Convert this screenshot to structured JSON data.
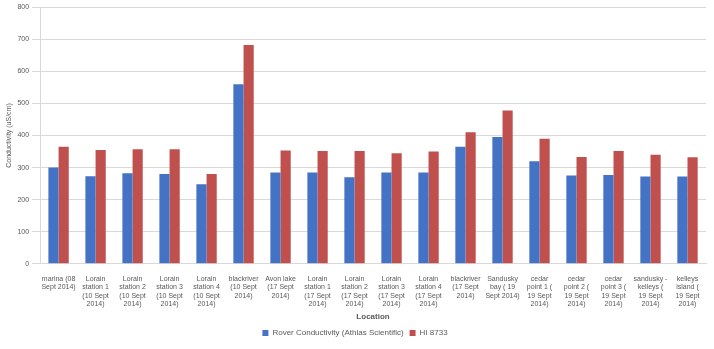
{
  "chart_data": {
    "type": "bar",
    "x_label": "Location",
    "y_label": "Conductivity (uS/cm)",
    "categories": [
      "marina (08 Sept 2014)",
      "Lorain station 1 (10 Sept 2014)",
      "Lorain station 2 (10 Sept 2014)",
      "Lorain station 3 (10 Sept 2014)",
      "Lorain station 4 (10 Sept 2014)",
      "blackriver (10 Sept 2014)",
      "Avon lake (17 Sept 2014)",
      "Lorain station 1 (17 Sept 2014)",
      "Lorain station 2 (17 Sept 2014)",
      "Lorain station 3 (17 Sept 2014)",
      "Lorain station 4 (17 Sept 2014)",
      "blackriver (17 Sept 2014)",
      "Sandusky bay ( 19 Sept 2014)",
      "cedar point 1 ( 19 Sept 2014)",
      "cedar point 2 ( 19 Sept 2014)",
      "cedar point 3 ( 19 Sept 2014)",
      "sandusky - kelleys ( 19 Sept 2014)",
      "kelleys island ( 19 Sept 2014)"
    ],
    "series": [
      {
        "name": "Rover Conductivity (Athlas Scientific)",
        "color": "#4472c4",
        "values": [
          300,
          273,
          282,
          280,
          248,
          560,
          285,
          285,
          270,
          285,
          285,
          365,
          395,
          320,
          275,
          277,
          272,
          272
        ]
      },
      {
        "name": "HI 8733",
        "color": "#c0504d",
        "values": [
          365,
          355,
          357,
          357,
          280,
          682,
          353,
          352,
          352,
          345,
          350,
          410,
          478,
          390,
          333,
          352,
          340,
          332
        ]
      }
    ],
    "ylim": [
      0,
      800
    ],
    "yticks": [
      0,
      100,
      200,
      300,
      400,
      500,
      600,
      700,
      800
    ],
    "grid": true,
    "legend": "bottom"
  }
}
